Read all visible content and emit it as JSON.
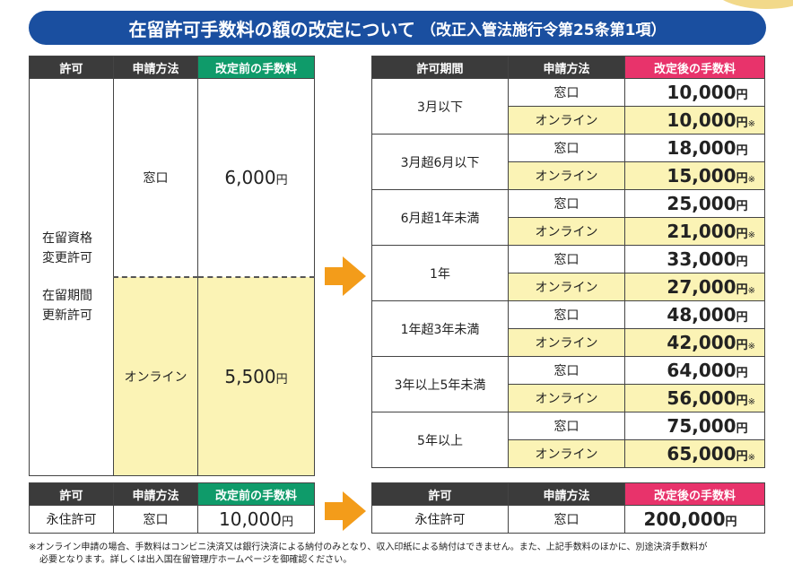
{
  "banner": {
    "title": "在留許可手数料の額の改定について",
    "subtitle": "（改正入管法施行令第25条第1項）"
  },
  "left": {
    "headers": [
      "許可",
      "申請方法",
      "改定前の手数料"
    ],
    "permit_line1": "在留資格",
    "permit_line2": "変更許可",
    "permit_line3": "在留期間",
    "permit_line4": "更新許可",
    "method_counter": "窓口",
    "fee_counter": "6,000",
    "method_online": "オンライン",
    "fee_online": "5,500",
    "yen": "円"
  },
  "right": {
    "headers": [
      "許可期間",
      "申請方法",
      "改定後の手数料"
    ],
    "counter": "窓口",
    "online": "オンライン",
    "yen": "円",
    "ast": "※",
    "rows": [
      {
        "period": "3月以下",
        "counter_fee": "10,000",
        "online_fee": "10,000"
      },
      {
        "period": "3月超6月以下",
        "counter_fee": "18,000",
        "online_fee": "15,000"
      },
      {
        "period": "6月超1年未満",
        "counter_fee": "25,000",
        "online_fee": "21,000"
      },
      {
        "period": "1年",
        "counter_fee": "33,000",
        "online_fee": "27,000"
      },
      {
        "period": "1年超3年未満",
        "counter_fee": "48,000",
        "online_fee": "42,000"
      },
      {
        "period": "3年以上5年未満",
        "counter_fee": "64,000",
        "online_fee": "56,000"
      },
      {
        "period": "5年以上",
        "counter_fee": "75,000",
        "online_fee": "65,000"
      }
    ]
  },
  "perm_left": {
    "headers": [
      "許可",
      "申請方法",
      "改定前の手数料"
    ],
    "permit": "永住許可",
    "method": "窓口",
    "fee": "10,000"
  },
  "perm_right": {
    "headers": [
      "許可",
      "申請方法",
      "改定後の手数料"
    ],
    "permit": "永住許可",
    "method": "窓口",
    "fee": "200,000"
  },
  "note": {
    "line1": "※オンライン申請の場合、手数料はコンビニ決済又は銀行決済による納付のみとなり、収入印紙による納付はできません。また、上記手数料のほかに、別途決済手数料が",
    "line2": "必要となります。詳しくは出入国在留管理庁ホームページを御確認ください。"
  },
  "colors": {
    "banner": "#1a4fa0",
    "header": "#3b3b3b",
    "before": "#0f9b6a",
    "after": "#e8336b",
    "online_bg": "#fbf3b5",
    "arrow": "#f39c1a"
  }
}
